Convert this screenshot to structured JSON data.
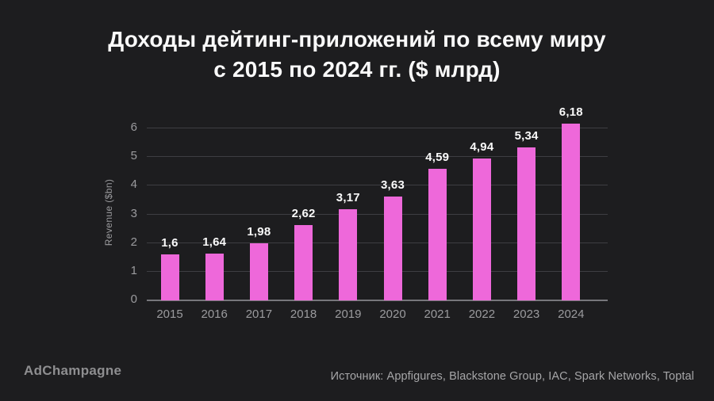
{
  "title": {
    "line1": "Доходы дейтинг-приложений по всему миру",
    "line2": "с 2015 по 2024 гг. ($ млрд)"
  },
  "footer": {
    "brand": "AdChampagne",
    "source": "Источник: Appfigures, Blackstone Group, IAC, Spark Networks, Toptal"
  },
  "colors": {
    "background": "#1d1d1f",
    "bar": "#ee68da",
    "gridline": "#3e3e42",
    "axis_line": "#77777b",
    "muted_text": "#9b9b9e",
    "strong_text": "#fafafa",
    "brand_text": "#8e8e90",
    "source_text": "#a6a6a8"
  },
  "chart_data": {
    "type": "bar",
    "title": "Доходы дейтинг-приложений по всему миру с 2015 по 2024 гг. ($ млрд)",
    "categories": [
      "2015",
      "2016",
      "2017",
      "2018",
      "2019",
      "2020",
      "2021",
      "2022",
      "2023",
      "2024"
    ],
    "values": [
      1.6,
      1.64,
      1.98,
      2.62,
      3.17,
      3.63,
      4.59,
      4.94,
      5.34,
      6.18
    ],
    "value_labels": [
      "1,6",
      "1,64",
      "1,98",
      "2,62",
      "3,17",
      "3,63",
      "4,59",
      "4,94",
      "5,34",
      "6,18"
    ],
    "xlabel": "",
    "ylabel": "Revenue ($bn)",
    "ylim": [
      0,
      6.5
    ],
    "yticks": [
      0,
      1,
      2,
      3,
      4,
      5,
      6
    ],
    "grid": true,
    "legend": false
  }
}
